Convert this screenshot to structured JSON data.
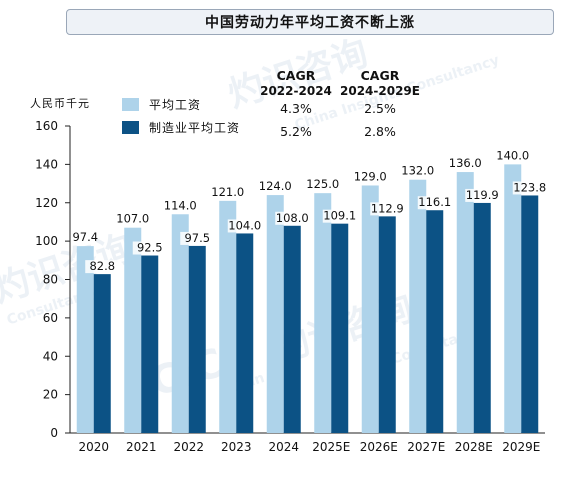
{
  "title": "中国劳动力年平均工资不断上涨",
  "watermarks": [
    "灼识咨询",
    "China Insights Consultancy",
    "CIC",
    "Consultancy",
    "Consultan",
    "Chin"
  ],
  "chart_data": {
    "type": "bar",
    "title": "中国劳动力年平均工资不断上涨",
    "ylabel": "人民币千元",
    "xlabel": "",
    "ylim": [
      0,
      160
    ],
    "yticks": [
      0,
      20,
      40,
      60,
      80,
      100,
      120,
      140,
      160
    ],
    "grid": false,
    "legend_position": "top-left",
    "categories": [
      "2020",
      "2021",
      "2022",
      "2023",
      "2024",
      "2025E",
      "2026E",
      "2027E",
      "2028E",
      "2029E"
    ],
    "series": [
      {
        "name": "平均工资",
        "color": "#aed3ea",
        "values": [
          97.4,
          107.0,
          114.0,
          121.0,
          124.0,
          125.0,
          129.0,
          132.0,
          136.0,
          140.0
        ],
        "labels": [
          "97.4",
          "107.0",
          "114.0",
          "121.0",
          "124.0",
          "125.0",
          "129.0",
          "132.0",
          "136.0",
          "140.0"
        ]
      },
      {
        "name": "制造业平均工资",
        "color": "#0c5285",
        "values": [
          82.8,
          92.5,
          97.5,
          104.0,
          108.0,
          109.1,
          112.9,
          116.1,
          119.9,
          123.8
        ],
        "labels": [
          "82.8",
          "92.5",
          "97.5",
          "104.0",
          "108.0",
          "109.1",
          "112.9",
          "116.1",
          "119.9",
          "123.8"
        ]
      }
    ],
    "cagr": {
      "headers": [
        [
          "CAGR",
          "2022-2024"
        ],
        [
          "CAGR",
          "2024-2029E"
        ]
      ],
      "rows": [
        [
          "4.3%",
          "2.5%"
        ],
        [
          "5.2%",
          "2.8%"
        ]
      ]
    },
    "axis_color": "#222222"
  }
}
